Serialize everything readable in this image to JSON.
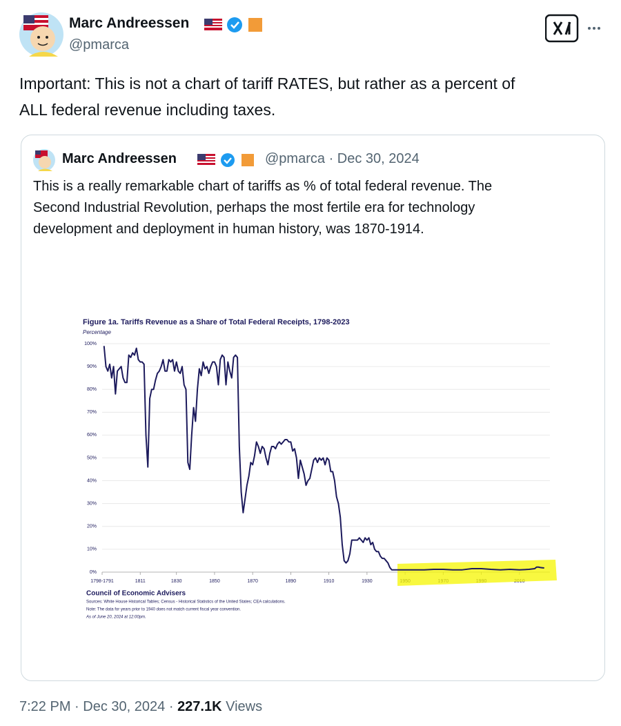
{
  "tweet": {
    "author_name": "Marc Andreessen",
    "handle": "@pmarca",
    "text_lines": [
      "Important: This is not a chart of tariff RATES, but rather as a percent of",
      "ALL federal revenue including taxes."
    ]
  },
  "quote": {
    "author_name": "Marc Andreessen",
    "handle": "@pmarca",
    "separator": "·",
    "date": "Dec 30, 2024",
    "text_lines": [
      "This is a really remarkable chart of tariffs as % of total federal revenue. The",
      "Second Industrial Revolution, perhaps the most fertile era for technology",
      "development and deployment in human history, was 1870-1914."
    ]
  },
  "chart_data": {
    "type": "line",
    "title": "Figure 1a. Tariffs Revenue as a Share of Total Federal Receipts, 1798-2023",
    "y_label": "Percentage",
    "source": "Council of Economic Advisers",
    "notes": [
      "Sources: White House Historical Tables; Census - Historical Statistics of the United States; CEA calculations.",
      "Note: The data for years prior to 1940 does not match current fiscal year convention.",
      "As of June 20, 2024 at 12:00pm."
    ],
    "color": "#1c1a5c",
    "x": [
      1792,
      1793,
      1794,
      1795,
      1796,
      1797,
      1798,
      1799,
      1800,
      1801,
      1802,
      1803,
      1804,
      1805,
      1806,
      1807,
      1808,
      1809,
      1810,
      1811,
      1812,
      1813,
      1814,
      1815,
      1816,
      1817,
      1818,
      1819,
      1820,
      1821,
      1822,
      1823,
      1824,
      1825,
      1826,
      1827,
      1828,
      1829,
      1830,
      1831,
      1832,
      1833,
      1834,
      1835,
      1836,
      1837,
      1838,
      1839,
      1840,
      1841,
      1842,
      1843,
      1844,
      1845,
      1846,
      1847,
      1848,
      1849,
      1850,
      1851,
      1852,
      1853,
      1854,
      1855,
      1856,
      1857,
      1858,
      1859,
      1860,
      1861,
      1862,
      1863,
      1864,
      1865,
      1866,
      1867,
      1868,
      1869,
      1870,
      1871,
      1872,
      1873,
      1874,
      1875,
      1876,
      1877,
      1878,
      1879,
      1880,
      1881,
      1882,
      1883,
      1884,
      1885,
      1886,
      1887,
      1888,
      1889,
      1890,
      1891,
      1892,
      1893,
      1894,
      1895,
      1896,
      1897,
      1898,
      1899,
      1900,
      1901,
      1902,
      1903,
      1904,
      1905,
      1906,
      1907,
      1908,
      1909,
      1910,
      1911,
      1912,
      1913,
      1914,
      1915,
      1916,
      1917,
      1918,
      1919,
      1920,
      1921,
      1922,
      1923,
      1924,
      1925,
      1926,
      1927,
      1928,
      1929,
      1930,
      1931,
      1932,
      1933,
      1934,
      1935,
      1936,
      1937,
      1938,
      1939,
      1940,
      1941,
      1942,
      1943,
      1944,
      1945,
      1950,
      1955,
      1960,
      1965,
      1970,
      1975,
      1980,
      1985,
      1990,
      1995,
      2000,
      2005,
      2010,
      2015,
      2018,
      2019,
      2020,
      2021,
      2022,
      2023
    ],
    "values": [
      99,
      90,
      88,
      91,
      85,
      90,
      78,
      88,
      89,
      90,
      85,
      83,
      83,
      95,
      94,
      96,
      95,
      98,
      93,
      92,
      92,
      91,
      60,
      46,
      76,
      80,
      80,
      84,
      87,
      88,
      90,
      93,
      88,
      88,
      93,
      92,
      93,
      88,
      92,
      88,
      87,
      90,
      82,
      80,
      48,
      45,
      60,
      72,
      66,
      80,
      89,
      86,
      92,
      89,
      90,
      87,
      90,
      92,
      92,
      90,
      82,
      93,
      95,
      94,
      82,
      92,
      88,
      85,
      94,
      95,
      94,
      55,
      35,
      26,
      32,
      38,
      42,
      48,
      47,
      51,
      57,
      55,
      52,
      55,
      54,
      50,
      47,
      52,
      55,
      55,
      54,
      56,
      57,
      56,
      57,
      58,
      58,
      57,
      57,
      53,
      54,
      50,
      41,
      49,
      46,
      43,
      38,
      40,
      41,
      45,
      49,
      50,
      48,
      50,
      49,
      50,
      47,
      50,
      49,
      44,
      44,
      40,
      33,
      30,
      24,
      12,
      5,
      4,
      5,
      8,
      14,
      14,
      14,
      14,
      15,
      14,
      13,
      15,
      14,
      15,
      12,
      13,
      10,
      9,
      9,
      7,
      6,
      6,
      5,
      4,
      2,
      1,
      1,
      1,
      1,
      1,
      1,
      1.2,
      1.2,
      1,
      1,
      1.5,
      1.5,
      1.2,
      1,
      1.2,
      1,
      1.2,
      1.5,
      2.2,
      2.2,
      2,
      1.9,
      1.8
    ],
    "xlim": [
      1791,
      2026
    ],
    "xticks": [
      {
        "value": 1791,
        "label": "1798-1791"
      },
      1811,
      1830,
      1850,
      1870,
      1890,
      1910,
      1930,
      1950,
      1970,
      1990,
      2010
    ],
    "ylim": [
      0,
      100
    ],
    "yticks": [
      {
        "value": 0,
        "label": "0%"
      },
      {
        "value": 10,
        "label": "10%"
      },
      {
        "value": 20,
        "label": "20%"
      },
      {
        "value": 30,
        "label": "30%"
      },
      {
        "value": 40,
        "label": "40%"
      },
      {
        "value": 50,
        "label": "50%"
      },
      {
        "value": 60,
        "label": "60%"
      },
      {
        "value": 70,
        "label": "70%"
      },
      {
        "value": 80,
        "label": "80%"
      },
      {
        "value": 90,
        "label": "90%"
      },
      {
        "value": 100,
        "label": "100%"
      }
    ],
    "grid": true
  },
  "footer": {
    "time": "7:22 PM",
    "separator": "·",
    "date": "Dec 30, 2024",
    "views": "227.1K",
    "views_label": "Views"
  }
}
